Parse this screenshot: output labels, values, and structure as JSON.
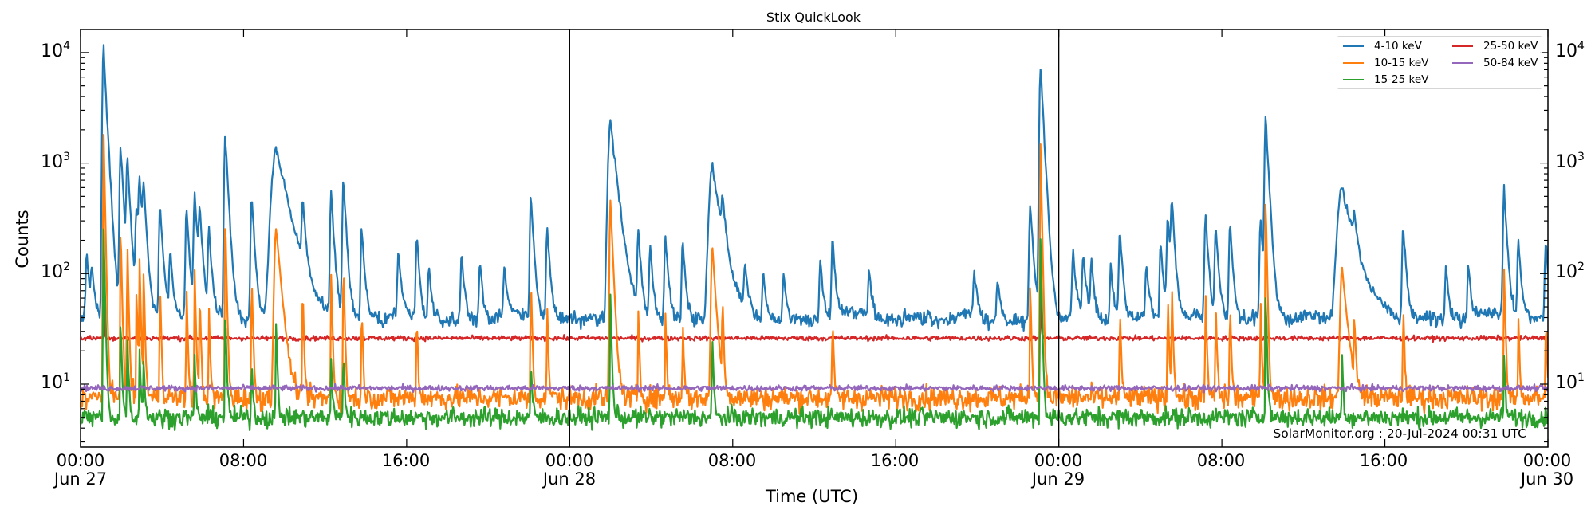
{
  "chart_data": {
    "type": "line",
    "title": "Stix QuickLook",
    "xlabel": "Time (UTC)",
    "ylabel": "Counts",
    "yscale": "log",
    "ylim": [
      2.75,
      16200
    ],
    "xlim_hours": [
      0,
      72
    ],
    "grid": false,
    "legend_position": "upper right",
    "legend_columns": 2,
    "yticks": [
      {
        "value": 10,
        "label_base": "10",
        "label_exp": "1"
      },
      {
        "value": 100,
        "label_base": "10",
        "label_exp": "2"
      },
      {
        "value": 1000,
        "label_base": "10",
        "label_exp": "3"
      },
      {
        "value": 10000,
        "label_base": "10",
        "label_exp": "4"
      }
    ],
    "xticks": [
      {
        "hour": 0,
        "time": "00:00",
        "date": "Jun 27"
      },
      {
        "hour": 8,
        "time": "08:00",
        "date": ""
      },
      {
        "hour": 16,
        "time": "16:00",
        "date": ""
      },
      {
        "hour": 24,
        "time": "00:00",
        "date": "Jun 28"
      },
      {
        "hour": 32,
        "time": "08:00",
        "date": ""
      },
      {
        "hour": 40,
        "time": "16:00",
        "date": ""
      },
      {
        "hour": 48,
        "time": "00:00",
        "date": "Jun 29"
      },
      {
        "hour": 56,
        "time": "08:00",
        "date": ""
      },
      {
        "hour": 64,
        "time": "16:00",
        "date": ""
      },
      {
        "hour": 72,
        "time": "00:00",
        "date": "Jun 30"
      }
    ],
    "day_boundaries_hours": [
      24,
      48
    ],
    "series": [
      {
        "name": "4-10 keV",
        "color": "#1f77b4",
        "baseline": 38
      },
      {
        "name": "10-15 keV",
        "color": "#ff7f0e",
        "baseline": 7.5
      },
      {
        "name": "15-25 keV",
        "color": "#2ca02c",
        "baseline": 5.0
      },
      {
        "name": "25-50 keV",
        "color": "#d62728",
        "baseline": 26
      },
      {
        "name": "50-84 keV",
        "color": "#9467bd",
        "baseline": 9.2
      }
    ],
    "flares_4_10keV": [
      {
        "hour": 0.3,
        "peak": 115
      },
      {
        "hour": 0.55,
        "peak": 70
      },
      {
        "hour": 1.13,
        "peak": 11000
      },
      {
        "hour": 1.97,
        "peak": 1400
      },
      {
        "hour": 2.3,
        "peak": 1000
      },
      {
        "hour": 2.75,
        "peak": 340
      },
      {
        "hour": 2.9,
        "peak": 650
      },
      {
        "hour": 3.1,
        "peak": 500
      },
      {
        "hour": 3.9,
        "peak": 380
      },
      {
        "hour": 4.4,
        "peak": 110
      },
      {
        "hour": 5.2,
        "peak": 360
      },
      {
        "hour": 5.6,
        "peak": 520
      },
      {
        "hour": 5.85,
        "peak": 320
      },
      {
        "hour": 6.3,
        "peak": 210
      },
      {
        "hour": 7.1,
        "peak": 1800
      },
      {
        "hour": 8.4,
        "peak": 480
      },
      {
        "hour": 9.6,
        "peak": 1300,
        "width": 0.5
      },
      {
        "hour": 10.9,
        "peak": 350
      },
      {
        "hour": 12.3,
        "peak": 500
      },
      {
        "hour": 12.9,
        "peak": 640
      },
      {
        "hour": 13.8,
        "peak": 220
      },
      {
        "hour": 15.6,
        "peak": 120
      },
      {
        "hour": 16.5,
        "peak": 180
      },
      {
        "hour": 17.1,
        "peak": 80
      },
      {
        "hour": 18.7,
        "peak": 110
      },
      {
        "hour": 19.6,
        "peak": 90
      },
      {
        "hour": 20.8,
        "peak": 70
      },
      {
        "hour": 22.1,
        "peak": 470
      },
      {
        "hour": 22.9,
        "peak": 220
      },
      {
        "hour": 26.0,
        "peak": 2400,
        "width": 0.25
      },
      {
        "hour": 27.37,
        "peak": 200
      },
      {
        "hour": 27.95,
        "peak": 140
      },
      {
        "hour": 28.7,
        "peak": 180
      },
      {
        "hour": 29.55,
        "peak": 160
      },
      {
        "hour": 31.0,
        "peak": 900,
        "width": 0.35
      },
      {
        "hour": 31.5,
        "peak": 280
      },
      {
        "hour": 32.6,
        "peak": 70
      },
      {
        "hour": 33.5,
        "peak": 70
      },
      {
        "hour": 34.5,
        "peak": 60
      },
      {
        "hour": 36.3,
        "peak": 100
      },
      {
        "hour": 36.9,
        "peak": 170
      },
      {
        "hour": 38.7,
        "peak": 70
      },
      {
        "hour": 43.85,
        "peak": 60
      },
      {
        "hour": 45.0,
        "peak": 55
      },
      {
        "hour": 46.6,
        "peak": 400
      },
      {
        "hour": 47.1,
        "peak": 8000
      },
      {
        "hour": 48.7,
        "peak": 120
      },
      {
        "hour": 49.2,
        "peak": 110
      },
      {
        "hour": 49.6,
        "peak": 90
      },
      {
        "hour": 50.55,
        "peak": 80
      },
      {
        "hour": 51.0,
        "peak": 210
      },
      {
        "hour": 52.3,
        "peak": 80
      },
      {
        "hour": 53.0,
        "peak": 150
      },
      {
        "hour": 53.35,
        "peak": 300
      },
      {
        "hour": 53.55,
        "peak": 380
      },
      {
        "hour": 55.2,
        "peak": 310
      },
      {
        "hour": 55.7,
        "peak": 240
      },
      {
        "hour": 56.4,
        "peak": 250
      },
      {
        "hour": 57.9,
        "peak": 260
      },
      {
        "hour": 58.15,
        "peak": 2600
      },
      {
        "hour": 61.9,
        "peak": 550,
        "width": 0.5
      },
      {
        "hour": 62.5,
        "peak": 170
      },
      {
        "hour": 64.9,
        "peak": 240
      },
      {
        "hour": 67.0,
        "peak": 80
      },
      {
        "hour": 68.1,
        "peak": 80
      },
      {
        "hour": 69.85,
        "peak": 540
      },
      {
        "hour": 70.55,
        "peak": 170
      },
      {
        "hour": 71.9,
        "peak": 160
      }
    ],
    "annotation": "SolarMonitor.org : 20-Jul-2024 00:31 UTC"
  },
  "figure": {
    "title": "Stix QuickLook",
    "xlabel": "Time (UTC)",
    "ylabel": "Counts",
    "legend": [
      {
        "label": "4-10 keV",
        "color": "#1f77b4"
      },
      {
        "label": "10-15 keV",
        "color": "#ff7f0e"
      },
      {
        "label": "15-25 keV",
        "color": "#2ca02c"
      },
      {
        "label": "25-50 keV",
        "color": "#d62728"
      },
      {
        "label": "50-84 keV",
        "color": "#9467bd"
      }
    ],
    "yticks": {
      "t1": "1",
      "t2": "2",
      "t3": "3",
      "t4": "4",
      "base": "10"
    },
    "xticks": [
      {
        "time": "00:00",
        "date": "Jun 27"
      },
      {
        "time": "08:00",
        "date": ""
      },
      {
        "time": "16:00",
        "date": ""
      },
      {
        "time": "00:00",
        "date": "Jun 28"
      },
      {
        "time": "08:00",
        "date": ""
      },
      {
        "time": "16:00",
        "date": ""
      },
      {
        "time": "00:00",
        "date": "Jun 29"
      },
      {
        "time": "08:00",
        "date": ""
      },
      {
        "time": "16:00",
        "date": ""
      },
      {
        "time": "00:00",
        "date": "Jun 30"
      }
    ],
    "stamp": "SolarMonitor.org : 20-Jul-2024 00:31 UTC"
  }
}
